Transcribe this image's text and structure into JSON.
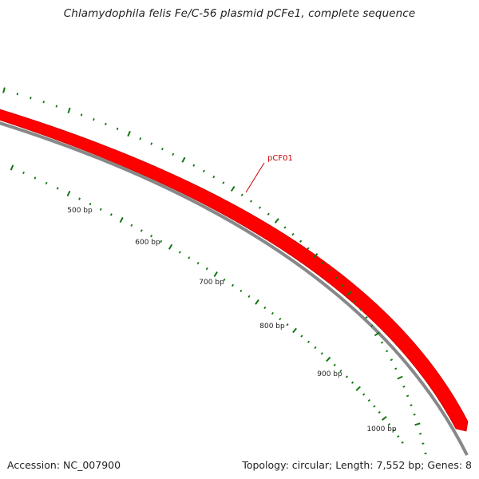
{
  "title": "Chlamydophila felis Fe/C-56 plasmid pCFe1, complete sequence",
  "footer": {
    "accession": "Accession: NC_007900",
    "summary": "Topology: circular; Length: 7,552 bp; Genes: 8"
  },
  "sequence_length_bp": 7552,
  "genes": [
    {
      "name": "pCF01",
      "strand": "forward",
      "color": "#ff0000"
    }
  ],
  "scale_labels": [
    "500 bp",
    "600 bp",
    "700 bp",
    "800 bp",
    "900 bp",
    "1000 bp"
  ],
  "colors": {
    "gene": "#ff0000",
    "gene_label": "#cc0000",
    "backbone": "#888888",
    "ticks": "#117711",
    "text": "#222222"
  }
}
